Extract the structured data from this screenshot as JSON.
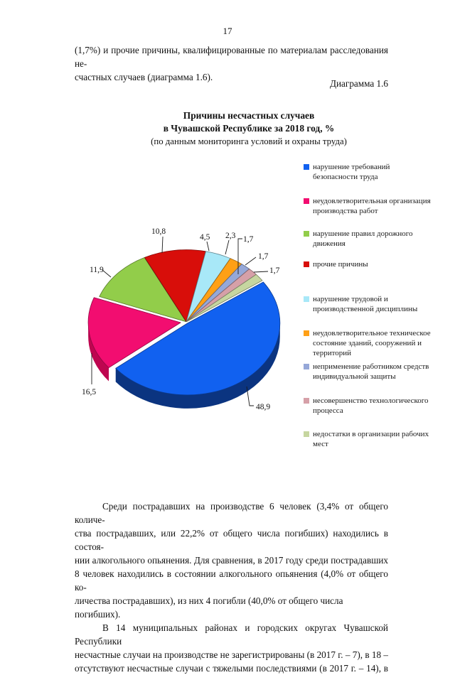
{
  "page": {
    "number": "17"
  },
  "intro": {
    "lines": [
      "(1,7%) и прочие причины, квалифицированные по материалам расследования не-",
      "счастных случаев (диаграмма 1.6)."
    ]
  },
  "caption": "Диаграмма 1.6",
  "chart_data": {
    "type": "pie",
    "title": "Причины несчастных случаев в Чувашской Республике за 2018 год, %",
    "title_lines": [
      "Причины несчастных случаев",
      "в Чувашской Республике за 2018 год, %",
      "(по данным мониторинга условий и охраны труда)"
    ],
    "unit": "%",
    "legend_position": "right",
    "style": "3d-exploded-pie",
    "slices": [
      {
        "label": "нарушение требований безопасности труда",
        "label_lines": [
          "нарушение требований",
          "безопасности труда"
        ],
        "value": 48.9,
        "display": "48,9",
        "color": "#1161F0",
        "side_color": "#0B3480"
      },
      {
        "label": "неудовлетворительная организация производства работ",
        "label_lines": [
          "неудовлетворительная  организация",
          "производства работ"
        ],
        "value": 16.5,
        "display": "16,5",
        "color": "#F20D70",
        "side_color": "#BE0650"
      },
      {
        "label": "нарушение правил дорожного движения",
        "label_lines": [
          "нарушение правил дорожного",
          "движения"
        ],
        "value": 11.9,
        "display": "11,9",
        "color": "#92CD4A",
        "side_color": "#5E8A28"
      },
      {
        "label": "прочие причины",
        "label_lines": [
          "прочие причины"
        ],
        "value": 10.8,
        "display": "10,8",
        "color": "#D80E0A",
        "side_color": "#8E0806"
      },
      {
        "label": "нарушение трудовой и производственной дисциплины",
        "label_lines": [
          "нарушение трудовой и",
          "производственной дисциплины"
        ],
        "value": 4.5,
        "display": "4,5",
        "color": "#A8E8F8",
        "side_color": "#6FAABE"
      },
      {
        "label": "неудовлетворительное техническое состояние зданий, сооружений и территорий",
        "label_lines": [
          "неудовлетворительное  техническое",
          "состояние зданий, сооружений и",
          "территорий"
        ],
        "value": 2.3,
        "display": "2,3",
        "color": "#FFA016",
        "side_color": "#B06E0C"
      },
      {
        "label": "неприменение работником средств индивидуальной защиты",
        "label_lines": [
          "неприменение работником средств",
          "индивидуальной  защиты"
        ],
        "value": 1.7,
        "display": "1,7",
        "color": "#96A8D8",
        "side_color": "#65749A"
      },
      {
        "label": "несовершенство технологического процесса",
        "label_lines": [
          "несовершенство технологического",
          "процесса"
        ],
        "value": 1.7,
        "display": "1,7",
        "color": "#D6A0A8",
        "side_color": "#976E74"
      },
      {
        "label": "недостатки в организации рабочих мест",
        "label_lines": [
          "недостатки  в организации рабочих",
          "мест"
        ],
        "value": 1.7,
        "display": "1,7",
        "color": "#C6D6A0",
        "side_color": "#88966B"
      }
    ]
  },
  "body": {
    "p1": [
      "Среди пострадавших на производстве 6 человек (3,4% от общего количе-",
      "ства пострадавших, или 22,2% от общего числа погибших) находились в состоя-",
      "нии алкогольного опьянения. Для сравнения, в 2017 году среди пострадавших",
      "8 человек находились в состоянии алкогольного опьянения (4,0% от общего ко-",
      "личества пострадавших), из них 4 погибли (40,0% от общего числа погибших)."
    ],
    "p2": [
      "В 14 муниципальных районах и городских округах Чувашской Республики",
      "несчастные случаи на производстве не зарегистрированы (в 2017 г. – 7), в 18 –",
      "отсутствуют несчастные случаи с тяжелыми последствиями (в 2017 г. – 14), в"
    ]
  }
}
